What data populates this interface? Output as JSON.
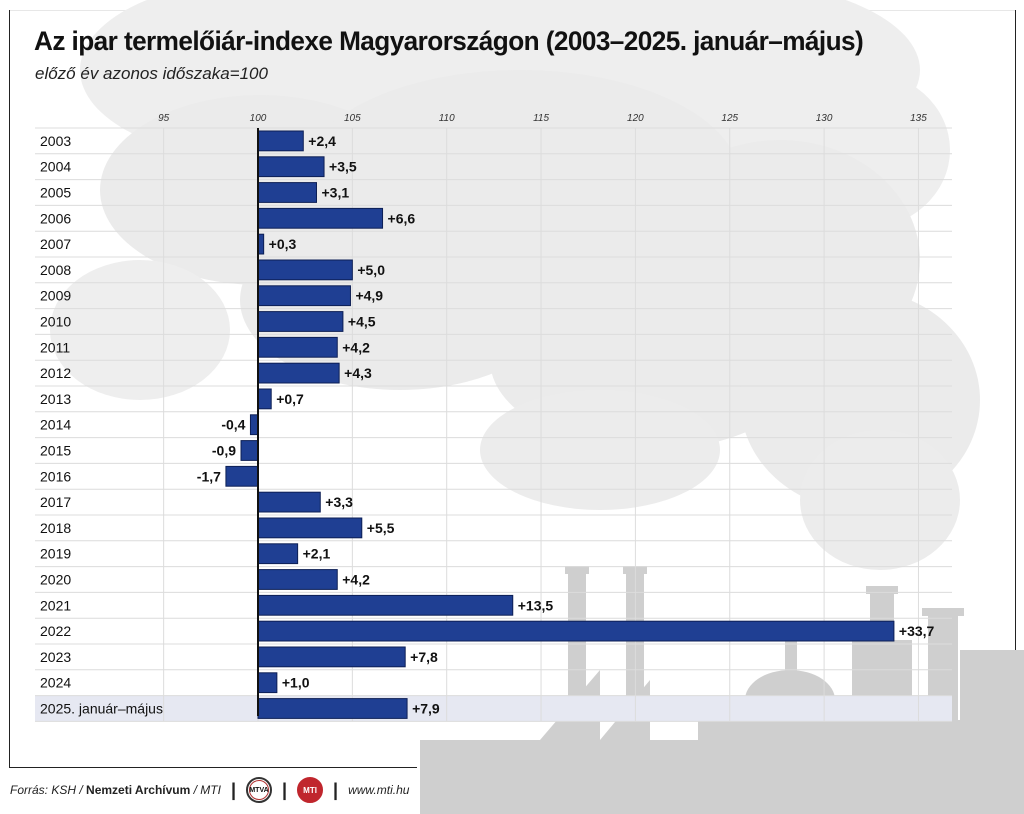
{
  "title": "Az ipar termelőiár-indexe Magyarországon (2003–2025. január–május)",
  "subtitle": "előző év azonos időszaka=100",
  "footer": {
    "source_prefix": "Forrás: KSH /",
    "archive": "Nemzeti Archívum",
    "mti": "/ MTI",
    "logo1_text": "MTVA",
    "logo2_text": "MTI",
    "website": "www.mti.hu"
  },
  "colors": {
    "bar": "#1f3f93",
    "bar_stroke": "#0d1f55",
    "highlight_row": "#e6e8f2",
    "background_art": "#e8e8e8",
    "factory": "#cfcfcf",
    "gridline": "#dcdcdc"
  },
  "chart_data": {
    "type": "bar",
    "orientation": "horizontal",
    "baseline": 100,
    "xlim": [
      92,
      137
    ],
    "xticks": [
      95,
      100,
      105,
      110,
      115,
      120,
      125,
      130,
      135
    ],
    "grid": true,
    "categories": [
      "2003",
      "2004",
      "2005",
      "2006",
      "2007",
      "2008",
      "2009",
      "2010",
      "2011",
      "2012",
      "2013",
      "2014",
      "2015",
      "2016",
      "2017",
      "2018",
      "2019",
      "2020",
      "2021",
      "2022",
      "2023",
      "2024",
      "2025. január–május"
    ],
    "values": [
      2.4,
      3.5,
      3.1,
      6.6,
      0.3,
      5.0,
      4.9,
      4.5,
      4.2,
      4.3,
      0.7,
      -0.4,
      -0.9,
      -1.7,
      3.3,
      5.5,
      2.1,
      4.2,
      13.5,
      33.7,
      7.8,
      1.0,
      7.9
    ],
    "labels": [
      "+2,4",
      "+3,5",
      "+3,1",
      "+6,6",
      "+0,3",
      "+5,0",
      "+4,9",
      "+4,5",
      "+4,2",
      "+4,3",
      "+0,7",
      "-0,4",
      "-0,9",
      "-1,7",
      "+3,3",
      "+5,5",
      "+2,1",
      "+4,2",
      "+13,5",
      "+33,7",
      "+7,8",
      "+1,0",
      "+7,9"
    ],
    "highlight_category": "2025. január–május"
  }
}
